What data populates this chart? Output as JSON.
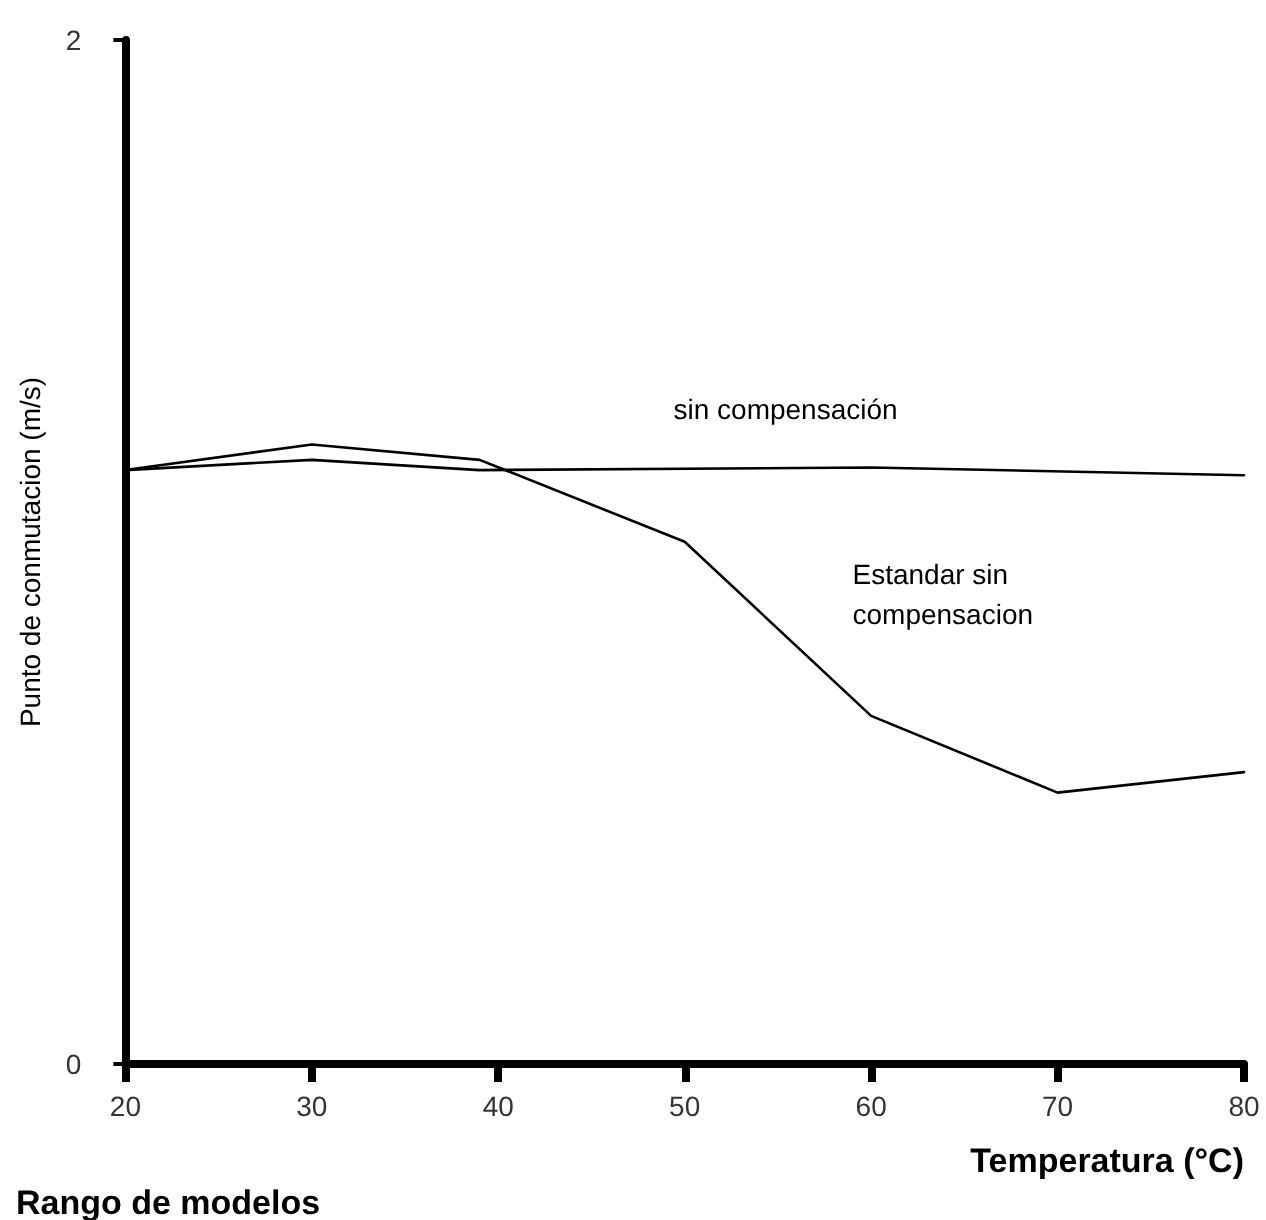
{
  "chart_data": {
    "type": "line",
    "xlabel": "Temperatura (°C)",
    "ylabel": "Punto de conmutacion (m/s)",
    "xlim": [
      20,
      80
    ],
    "xticks": [
      20,
      30,
      40,
      50,
      60,
      70,
      80
    ],
    "ylim": [
      0,
      2
    ],
    "yticks": [
      0,
      2
    ],
    "series": [
      {
        "name": "sin compensación",
        "color": "#000000",
        "x": [
          20,
          30,
          39,
          60,
          80
        ],
        "values": [
          1.16,
          1.18,
          1.16,
          1.165,
          1.15
        ]
      },
      {
        "name": "Estandar sin compensacion",
        "color": "#000000",
        "x": [
          20,
          30,
          39,
          50,
          60,
          70,
          80
        ],
        "values": [
          1.16,
          1.21,
          1.18,
          1.02,
          0.68,
          0.53,
          0.57
        ]
      }
    ],
    "annotations": [
      "Rango de modelos"
    ],
    "grid": false,
    "marker": "none",
    "line_style": "solid"
  }
}
